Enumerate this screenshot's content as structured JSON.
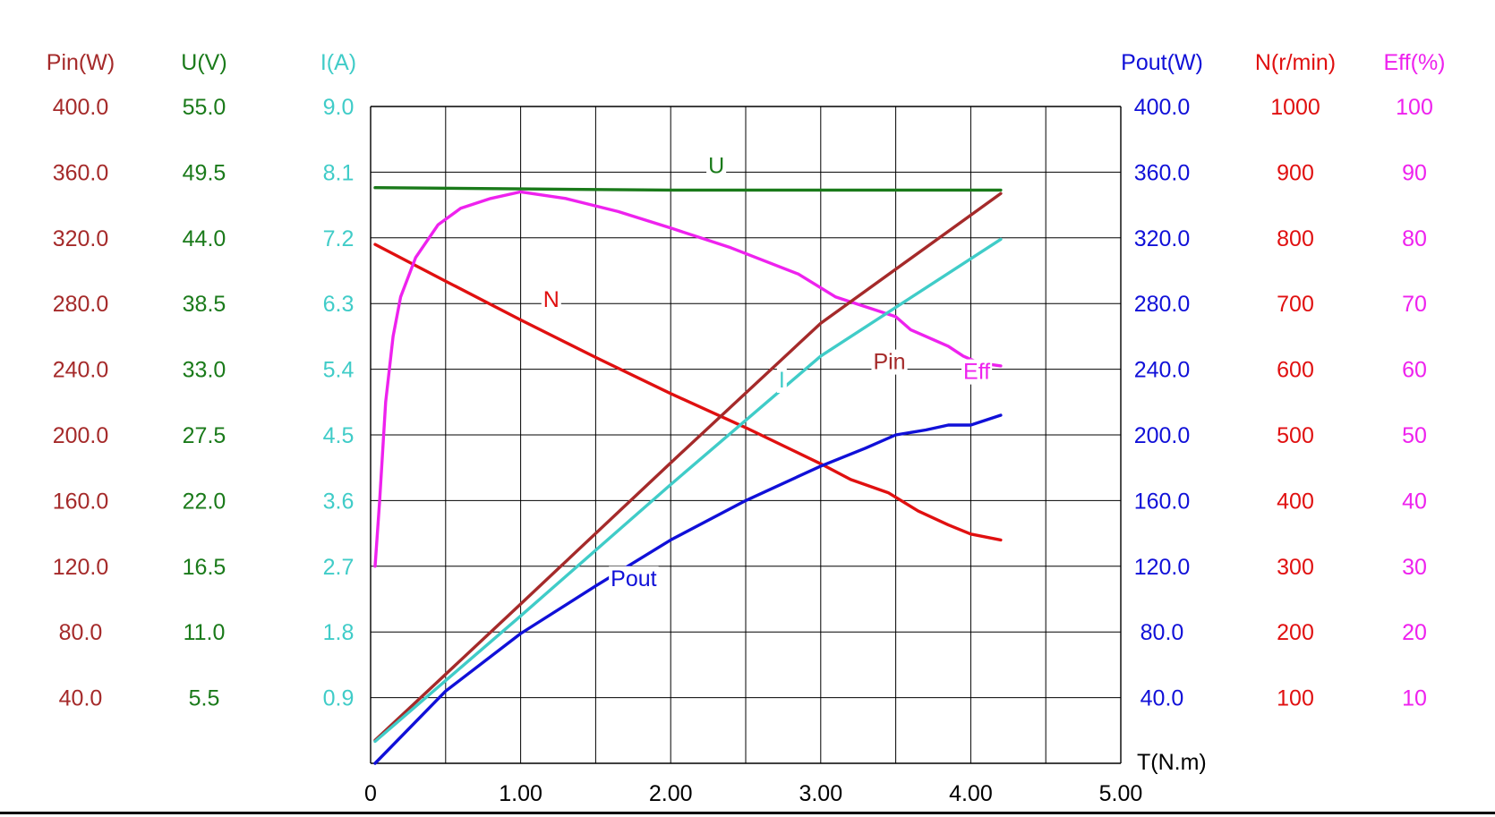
{
  "chart_data": {
    "type": "line",
    "x_axis": {
      "label": "T(N.m)",
      "range": [
        0,
        5
      ],
      "ticks": [
        0,
        1,
        2,
        3,
        4,
        5
      ],
      "tick_labels": [
        "0",
        "1.00",
        "2.00",
        "3.00",
        "4.00",
        "5.00"
      ]
    },
    "grid": true,
    "axes": [
      {
        "id": "pin",
        "label": "Pin(W)",
        "side": "left",
        "color": "#A52A2A",
        "max": 400.0,
        "tick_labels": [
          "400.0",
          "360.0",
          "320.0",
          "280.0",
          "240.0",
          "200.0",
          "160.0",
          "120.0",
          "80.0",
          "40.0"
        ]
      },
      {
        "id": "u",
        "label": "U(V)",
        "side": "left",
        "color": "#1A7A1A",
        "max": 55.0,
        "tick_labels": [
          "55.0",
          "49.5",
          "44.0",
          "38.5",
          "33.0",
          "27.5",
          "22.0",
          "16.5",
          "11.0",
          "5.5"
        ]
      },
      {
        "id": "i",
        "label": "I(A)",
        "side": "left",
        "color": "#40CCC8",
        "max": 9.0,
        "tick_labels": [
          "9.0",
          "8.1",
          "7.2",
          "6.3",
          "5.4",
          "4.5",
          "3.6",
          "2.7",
          "1.8",
          "0.9"
        ]
      },
      {
        "id": "pout",
        "label": "Pout(W)",
        "side": "right",
        "color": "#1010D8",
        "max": 400.0,
        "tick_labels": [
          "400.0",
          "360.0",
          "320.0",
          "280.0",
          "240.0",
          "200.0",
          "160.0",
          "120.0",
          "80.0",
          "40.0"
        ]
      },
      {
        "id": "n",
        "label": "N(r/min)",
        "side": "right",
        "color": "#E01010",
        "max": 1000,
        "tick_labels": [
          "1000",
          "900",
          "800",
          "700",
          "600",
          "500",
          "400",
          "300",
          "200",
          "100"
        ]
      },
      {
        "id": "eff",
        "label": "Eff(%)",
        "side": "right",
        "color": "#EE22EE",
        "max": 100,
        "tick_labels": [
          "100",
          "90",
          "80",
          "70",
          "60",
          "50",
          "40",
          "30",
          "20",
          "10"
        ]
      }
    ],
    "series": [
      {
        "name": "U",
        "axis": "u",
        "color": "#1A7A1A",
        "label_at": [
          2.25,
          49.4
        ],
        "points": [
          [
            0.03,
            48.2
          ],
          [
            1.0,
            48.1
          ],
          [
            2.0,
            48.0
          ],
          [
            3.0,
            48.0
          ],
          [
            4.2,
            48.0
          ]
        ]
      },
      {
        "name": "N",
        "axis": "n",
        "color": "#E01010",
        "label_at": [
          1.15,
          695
        ],
        "points": [
          [
            0.03,
            790
          ],
          [
            0.5,
            734
          ],
          [
            1.0,
            675
          ],
          [
            1.5,
            618
          ],
          [
            2.0,
            563
          ],
          [
            2.5,
            511
          ],
          [
            3.0,
            456
          ],
          [
            3.2,
            432
          ],
          [
            3.45,
            412
          ],
          [
            3.65,
            384
          ],
          [
            3.85,
            363
          ],
          [
            4.0,
            349
          ],
          [
            4.2,
            340
          ]
        ]
      },
      {
        "name": "Eff",
        "axis": "eff",
        "color": "#EE22EE",
        "label_at": [
          3.95,
          58.5
        ],
        "points": [
          [
            0.03,
            30
          ],
          [
            0.06,
            40
          ],
          [
            0.1,
            55
          ],
          [
            0.15,
            65
          ],
          [
            0.2,
            71
          ],
          [
            0.3,
            77
          ],
          [
            0.45,
            82
          ],
          [
            0.6,
            84.5
          ],
          [
            0.8,
            86
          ],
          [
            1.0,
            87
          ],
          [
            1.3,
            86
          ],
          [
            1.65,
            84
          ],
          [
            2.0,
            81.5
          ],
          [
            2.4,
            78.5
          ],
          [
            2.85,
            74.5
          ],
          [
            3.1,
            71
          ],
          [
            3.3,
            69.5
          ],
          [
            3.5,
            68
          ],
          [
            3.6,
            66
          ],
          [
            3.75,
            64.5
          ],
          [
            3.85,
            63.5
          ],
          [
            3.95,
            62
          ],
          [
            4.05,
            61
          ],
          [
            4.2,
            60.5
          ]
        ]
      },
      {
        "name": "Pin",
        "axis": "pin",
        "color": "#A52A2A",
        "label_at": [
          3.35,
          240
        ],
        "points": [
          [
            0.03,
            14
          ],
          [
            1.0,
            97
          ],
          [
            2.0,
            183
          ],
          [
            3.0,
            268
          ],
          [
            4.2,
            347
          ]
        ]
      },
      {
        "name": "I",
        "axis": "i",
        "color": "#40CCC8",
        "label_at": [
          2.72,
          5.15
        ],
        "points": [
          [
            0.03,
            0.3
          ],
          [
            1.0,
            2.02
          ],
          [
            2.0,
            3.82
          ],
          [
            3.0,
            5.58
          ],
          [
            4.2,
            7.18
          ]
        ]
      },
      {
        "name": "Pout",
        "axis": "pout",
        "color": "#1010D8",
        "label_at": [
          1.6,
          108
        ],
        "points": [
          [
            0.03,
            0
          ],
          [
            0.5,
            44
          ],
          [
            1.0,
            79
          ],
          [
            1.5,
            108
          ],
          [
            2.0,
            136
          ],
          [
            2.5,
            160
          ],
          [
            3.0,
            181
          ],
          [
            3.3,
            192
          ],
          [
            3.5,
            200
          ],
          [
            3.7,
            203
          ],
          [
            3.85,
            206
          ],
          [
            4.0,
            206
          ],
          [
            4.2,
            212
          ]
        ]
      }
    ]
  }
}
